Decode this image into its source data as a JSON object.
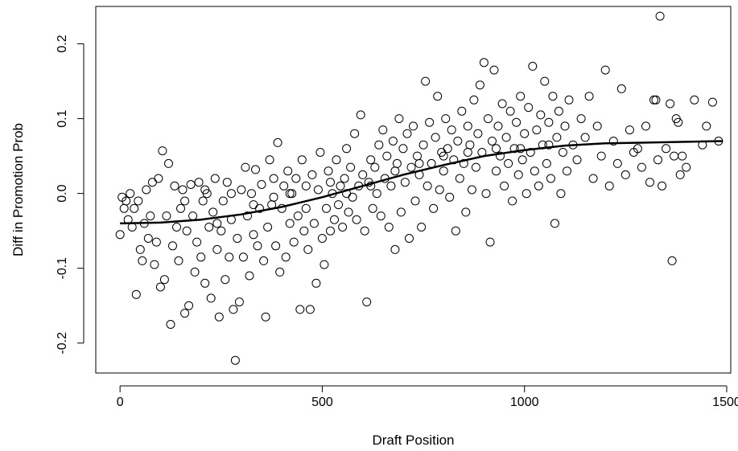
{
  "chart_data": {
    "type": "scatter",
    "xlabel": "Draft Position",
    "ylabel": "Diff in Promotion Prob",
    "xlim": [
      -60,
      1510
    ],
    "ylim": [
      -0.24,
      0.25
    ],
    "x_ticks": [
      0,
      500,
      1000,
      1500
    ],
    "x_tick_labels": [
      "0",
      "500",
      "1000",
      "1500"
    ],
    "y_ticks": [
      -0.2,
      -0.1,
      0.0,
      0.1,
      0.2
    ],
    "y_tick_labels": [
      "-0.2",
      "-0.1",
      "0.0",
      "0.1",
      "0.2"
    ],
    "grid": false,
    "legend": "none",
    "marker": "open-circle",
    "point_color": "#000000",
    "trend_color": "#000000",
    "points": [
      [
        0,
        -0.055
      ],
      [
        5,
        -0.005
      ],
      [
        10,
        -0.02
      ],
      [
        15,
        -0.01
      ],
      [
        20,
        -0.035
      ],
      [
        25,
        0.0
      ],
      [
        30,
        -0.045
      ],
      [
        35,
        -0.02
      ],
      [
        40,
        -0.135
      ],
      [
        45,
        -0.01
      ],
      [
        50,
        -0.075
      ],
      [
        55,
        -0.09
      ],
      [
        60,
        -0.04
      ],
      [
        65,
        0.005
      ],
      [
        70,
        -0.06
      ],
      [
        75,
        -0.03
      ],
      [
        80,
        0.015
      ],
      [
        85,
        -0.095
      ],
      [
        90,
        -0.065
      ],
      [
        95,
        0.02
      ],
      [
        100,
        -0.125
      ],
      [
        105,
        0.057
      ],
      [
        110,
        -0.115
      ],
      [
        115,
        -0.03
      ],
      [
        120,
        0.04
      ],
      [
        125,
        -0.175
      ],
      [
        130,
        -0.07
      ],
      [
        135,
        0.01
      ],
      [
        140,
        -0.045
      ],
      [
        145,
        -0.09
      ],
      [
        150,
        -0.02
      ],
      [
        155,
        0.005
      ],
      [
        160,
        -0.16
      ],
      [
        165,
        -0.05
      ],
      [
        170,
        -0.15
      ],
      [
        175,
        0.012
      ],
      [
        180,
        -0.03
      ],
      [
        185,
        -0.105
      ],
      [
        190,
        -0.065
      ],
      [
        195,
        0.015
      ],
      [
        200,
        -0.085
      ],
      [
        205,
        -0.01
      ],
      [
        210,
        -0.12
      ],
      [
        215,
        0.0
      ],
      [
        220,
        -0.045
      ],
      [
        225,
        -0.14
      ],
      [
        230,
        -0.025
      ],
      [
        235,
        0.02
      ],
      [
        240,
        -0.075
      ],
      [
        245,
        -0.165
      ],
      [
        250,
        -0.05
      ],
      [
        255,
        -0.01
      ],
      [
        260,
        -0.115
      ],
      [
        265,
        0.015
      ],
      [
        270,
        -0.085
      ],
      [
        275,
        -0.035
      ],
      [
        280,
        -0.155
      ],
      [
        285,
        -0.223
      ],
      [
        290,
        -0.06
      ],
      [
        295,
        -0.145
      ],
      [
        300,
        0.005
      ],
      [
        305,
        -0.085
      ],
      [
        310,
        0.035
      ],
      [
        315,
        -0.03
      ],
      [
        320,
        -0.11
      ],
      [
        325,
        0.0
      ],
      [
        330,
        -0.055
      ],
      [
        335,
        0.032
      ],
      [
        340,
        -0.07
      ],
      [
        345,
        -0.02
      ],
      [
        350,
        0.012
      ],
      [
        355,
        -0.09
      ],
      [
        360,
        -0.165
      ],
      [
        365,
        -0.045
      ],
      [
        370,
        0.045
      ],
      [
        375,
        -0.015
      ],
      [
        380,
        0.02
      ],
      [
        385,
        -0.07
      ],
      [
        390,
        0.068
      ],
      [
        395,
        -0.105
      ],
      [
        400,
        -0.02
      ],
      [
        405,
        0.01
      ],
      [
        410,
        -0.085
      ],
      [
        415,
        0.03
      ],
      [
        420,
        -0.04
      ],
      [
        425,
        0.0
      ],
      [
        430,
        -0.065
      ],
      [
        435,
        0.02
      ],
      [
        440,
        -0.03
      ],
      [
        445,
        -0.155
      ],
      [
        450,
        0.045
      ],
      [
        455,
        -0.05
      ],
      [
        460,
        0.01
      ],
      [
        465,
        -0.075
      ],
      [
        470,
        -0.155
      ],
      [
        475,
        0.025
      ],
      [
        480,
        -0.04
      ],
      [
        485,
        -0.12
      ],
      [
        490,
        0.005
      ],
      [
        495,
        0.055
      ],
      [
        500,
        -0.06
      ],
      [
        505,
        -0.095
      ],
      [
        510,
        -0.02
      ],
      [
        515,
        0.03
      ],
      [
        520,
        -0.05
      ],
      [
        525,
        0.0
      ],
      [
        530,
        -0.035
      ],
      [
        535,
        0.045
      ],
      [
        540,
        -0.015
      ],
      [
        545,
        0.01
      ],
      [
        550,
        -0.045
      ],
      [
        555,
        0.02
      ],
      [
        560,
        0.06
      ],
      [
        565,
        -0.025
      ],
      [
        570,
        0.035
      ],
      [
        575,
        -0.005
      ],
      [
        580,
        0.08
      ],
      [
        585,
        -0.035
      ],
      [
        590,
        0.01
      ],
      [
        595,
        0.105
      ],
      [
        600,
        0.025
      ],
      [
        605,
        -0.05
      ],
      [
        610,
        -0.145
      ],
      [
        615,
        0.015
      ],
      [
        620,
        0.045
      ],
      [
        625,
        -0.02
      ],
      [
        630,
        0.035
      ],
      [
        635,
        0.0
      ],
      [
        640,
        0.065
      ],
      [
        645,
        -0.03
      ],
      [
        650,
        0.085
      ],
      [
        655,
        0.02
      ],
      [
        660,
        0.05
      ],
      [
        665,
        -0.045
      ],
      [
        670,
        0.01
      ],
      [
        675,
        0.07
      ],
      [
        680,
        -0.075
      ],
      [
        685,
        0.04
      ],
      [
        690,
        0.1
      ],
      [
        695,
        -0.025
      ],
      [
        700,
        0.06
      ],
      [
        705,
        0.015
      ],
      [
        710,
        0.08
      ],
      [
        715,
        -0.06
      ],
      [
        720,
        0.035
      ],
      [
        725,
        0.09
      ],
      [
        730,
        -0.01
      ],
      [
        735,
        0.05
      ],
      [
        740,
        0.025
      ],
      [
        745,
        -0.045
      ],
      [
        750,
        0.065
      ],
      [
        755,
        0.15
      ],
      [
        760,
        0.01
      ],
      [
        765,
        0.095
      ],
      [
        770,
        0.04
      ],
      [
        775,
        -0.02
      ],
      [
        780,
        0.075
      ],
      [
        785,
        0.13
      ],
      [
        790,
        0.005
      ],
      [
        795,
        0.055
      ],
      [
        800,
        0.03
      ],
      [
        805,
        0.1
      ],
      [
        810,
        0.06
      ],
      [
        815,
        -0.005
      ],
      [
        820,
        0.085
      ],
      [
        825,
        0.045
      ],
      [
        830,
        -0.05
      ],
      [
        835,
        0.07
      ],
      [
        840,
        0.02
      ],
      [
        845,
        0.11
      ],
      [
        850,
        0.04
      ],
      [
        855,
        -0.025
      ],
      [
        860,
        0.09
      ],
      [
        865,
        0.065
      ],
      [
        870,
        0.005
      ],
      [
        875,
        0.125
      ],
      [
        880,
        0.035
      ],
      [
        885,
        0.08
      ],
      [
        890,
        0.145
      ],
      [
        895,
        0.055
      ],
      [
        900,
        0.175
      ],
      [
        905,
        0.0
      ],
      [
        910,
        0.1
      ],
      [
        915,
        -0.065
      ],
      [
        920,
        0.07
      ],
      [
        925,
        0.165
      ],
      [
        930,
        0.03
      ],
      [
        935,
        0.09
      ],
      [
        940,
        0.05
      ],
      [
        945,
        0.12
      ],
      [
        950,
        0.01
      ],
      [
        955,
        0.075
      ],
      [
        960,
        0.04
      ],
      [
        965,
        0.11
      ],
      [
        970,
        -0.01
      ],
      [
        975,
        0.06
      ],
      [
        980,
        0.095
      ],
      [
        985,
        0.025
      ],
      [
        990,
        0.13
      ],
      [
        995,
        0.045
      ],
      [
        1000,
        0.08
      ],
      [
        1005,
        0.0
      ],
      [
        1010,
        0.115
      ],
      [
        1015,
        0.055
      ],
      [
        1020,
        0.17
      ],
      [
        1025,
        0.03
      ],
      [
        1030,
        0.085
      ],
      [
        1035,
        0.01
      ],
      [
        1040,
        0.105
      ],
      [
        1045,
        0.065
      ],
      [
        1050,
        0.15
      ],
      [
        1055,
        0.04
      ],
      [
        1060,
        0.095
      ],
      [
        1065,
        0.02
      ],
      [
        1070,
        0.13
      ],
      [
        1075,
        -0.04
      ],
      [
        1080,
        0.075
      ],
      [
        1085,
        0.11
      ],
      [
        1090,
        0.0
      ],
      [
        1095,
        0.055
      ],
      [
        1100,
        0.09
      ],
      [
        1105,
        0.03
      ],
      [
        1110,
        0.125
      ],
      [
        1120,
        0.065
      ],
      [
        1130,
        0.045
      ],
      [
        1140,
        0.1
      ],
      [
        1150,
        0.075
      ],
      [
        1160,
        0.13
      ],
      [
        1170,
        0.02
      ],
      [
        1180,
        0.09
      ],
      [
        1190,
        0.05
      ],
      [
        1200,
        0.165
      ],
      [
        1210,
        0.01
      ],
      [
        1220,
        0.07
      ],
      [
        1230,
        0.04
      ],
      [
        1240,
        0.14
      ],
      [
        1250,
        0.025
      ],
      [
        1260,
        0.085
      ],
      [
        1270,
        0.055
      ],
      [
        1280,
        0.06
      ],
      [
        1290,
        0.035
      ],
      [
        1300,
        0.09
      ],
      [
        1310,
        0.015
      ],
      [
        1320,
        0.125
      ],
      [
        1325,
        0.125
      ],
      [
        1330,
        0.045
      ],
      [
        1335,
        0.237
      ],
      [
        1340,
        0.01
      ],
      [
        1350,
        0.06
      ],
      [
        1360,
        0.12
      ],
      [
        1365,
        -0.09
      ],
      [
        1370,
        0.05
      ],
      [
        1375,
        0.1
      ],
      [
        1380,
        0.095
      ],
      [
        1385,
        0.025
      ],
      [
        1390,
        0.05
      ],
      [
        1400,
        0.035
      ],
      [
        1420,
        0.125
      ],
      [
        1440,
        0.065
      ],
      [
        1450,
        0.09
      ],
      [
        1465,
        0.122
      ],
      [
        1480,
        0.07
      ],
      [
        160,
        -0.01
      ],
      [
        210,
        0.005
      ],
      [
        240,
        -0.04
      ],
      [
        275,
        0.0
      ],
      [
        330,
        -0.015
      ],
      [
        380,
        -0.005
      ],
      [
        420,
        0.0
      ],
      [
        460,
        -0.02
      ],
      [
        520,
        0.015
      ],
      [
        560,
        0.0
      ],
      [
        620,
        0.01
      ],
      [
        680,
        0.03
      ],
      [
        740,
        0.04
      ],
      [
        800,
        0.05
      ],
      [
        860,
        0.055
      ],
      [
        930,
        0.06
      ],
      [
        990,
        0.06
      ],
      [
        1060,
        0.065
      ]
    ],
    "trend": [
      [
        0,
        -0.04
      ],
      [
        100,
        -0.039
      ],
      [
        200,
        -0.035
      ],
      [
        300,
        -0.028
      ],
      [
        400,
        -0.018
      ],
      [
        500,
        -0.005
      ],
      [
        600,
        0.01
      ],
      [
        700,
        0.025
      ],
      [
        800,
        0.038
      ],
      [
        900,
        0.05
      ],
      [
        1000,
        0.058
      ],
      [
        1100,
        0.064
      ],
      [
        1200,
        0.067
      ],
      [
        1300,
        0.068
      ],
      [
        1400,
        0.069
      ],
      [
        1490,
        0.07
      ]
    ]
  }
}
